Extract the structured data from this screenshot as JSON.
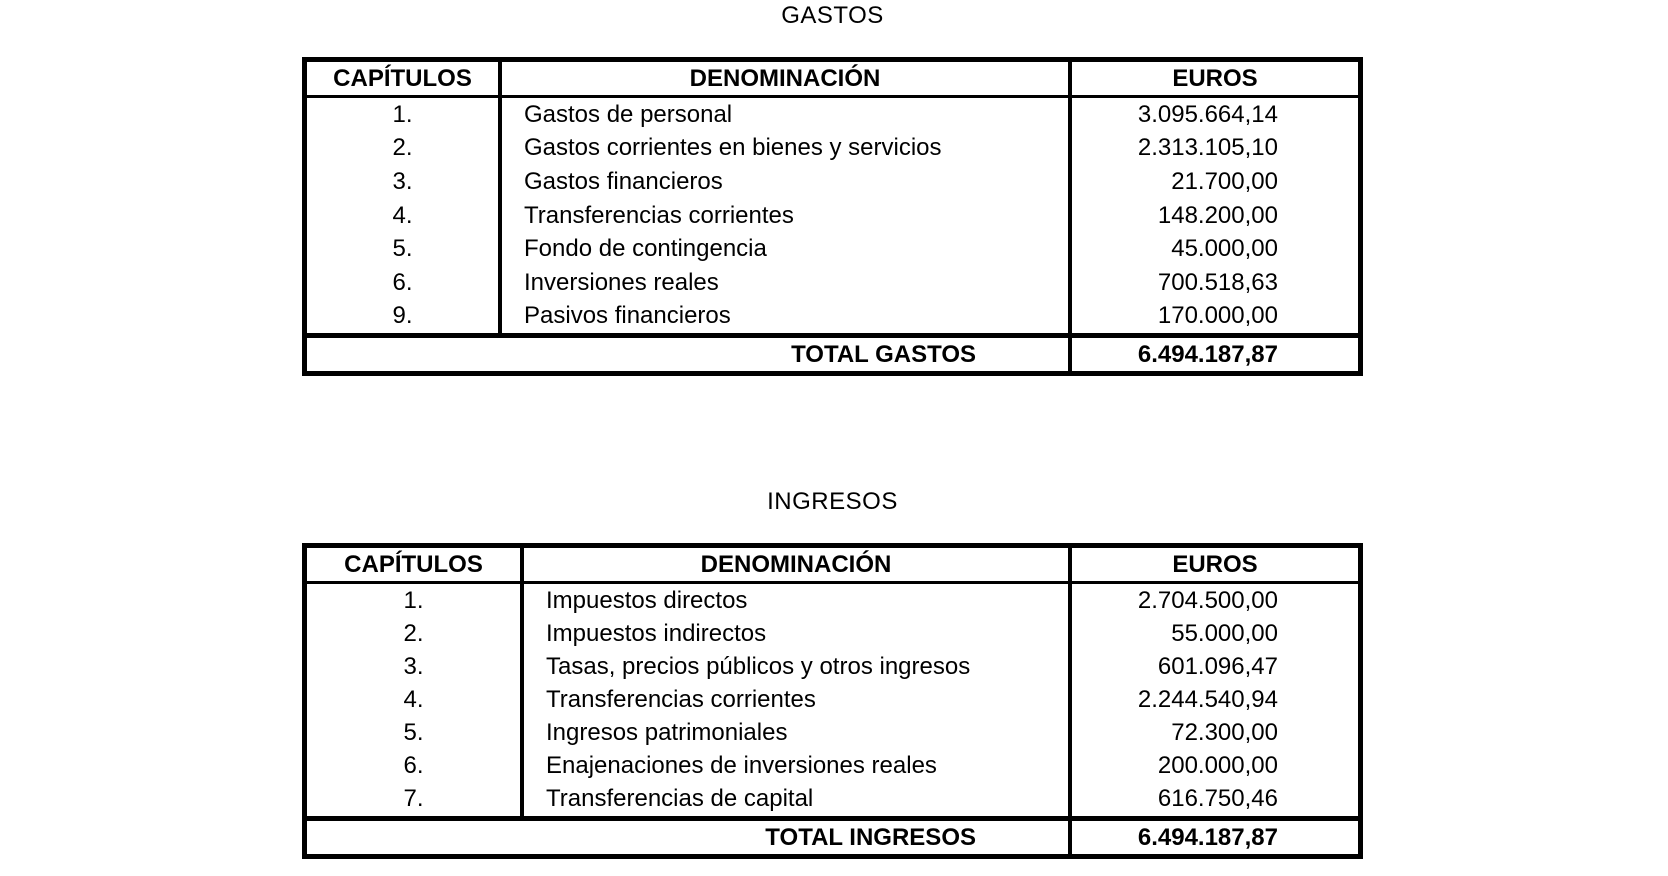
{
  "document": {
    "colors": {
      "background": "#ffffff",
      "text": "#000000",
      "border": "#000000"
    },
    "sections": [
      {
        "title": "GASTOS",
        "columns": {
          "capitulos": "CAPÍTULOS",
          "denominacion": "DENOMINACIÓN",
          "euros": "EUROS"
        },
        "rows": [
          {
            "capitulo": "1.",
            "denominacion": "Gastos de personal",
            "euros": "3.095.664,14"
          },
          {
            "capitulo": "2.",
            "denominacion": "Gastos corrientes en bienes y servicios",
            "euros": "2.313.105,10"
          },
          {
            "capitulo": "3.",
            "denominacion": "Gastos financieros",
            "euros": "21.700,00"
          },
          {
            "capitulo": "4.",
            "denominacion": "Transferencias corrientes",
            "euros": "148.200,00"
          },
          {
            "capitulo": "5.",
            "denominacion": "Fondo de contingencia",
            "euros": "45.000,00"
          },
          {
            "capitulo": "6.",
            "denominacion": "Inversiones reales",
            "euros": "700.518,63"
          },
          {
            "capitulo": "9.",
            "denominacion": "Pasivos financieros",
            "euros": "170.000,00"
          }
        ],
        "total_label": "TOTAL GASTOS",
        "total_value": "6.494.187,87"
      },
      {
        "title": "INGRESOS",
        "columns": {
          "capitulos": "CAPÍTULOS",
          "denominacion": "DENOMINACIÓN",
          "euros": "EUROS"
        },
        "rows": [
          {
            "capitulo": "1.",
            "denominacion": "Impuestos directos",
            "euros": "2.704.500,00"
          },
          {
            "capitulo": "2.",
            "denominacion": "Impuestos indirectos",
            "euros": "55.000,00"
          },
          {
            "capitulo": "3.",
            "denominacion": "Tasas, precios públicos y otros ingresos",
            "euros": "601.096,47"
          },
          {
            "capitulo": "4.",
            "denominacion": "Transferencias corrientes",
            "euros": "2.244.540,94"
          },
          {
            "capitulo": "5.",
            "denominacion": "Ingresos patrimoniales",
            "euros": "72.300,00"
          },
          {
            "capitulo": "6.",
            "denominacion": "Enajenaciones de inversiones reales",
            "euros": "200.000,00"
          },
          {
            "capitulo": "7.",
            "denominacion": "Transferencias de capital",
            "euros": "616.750,46"
          }
        ],
        "total_label": "TOTAL INGRESOS",
        "total_value": "6.494.187,87"
      }
    ]
  }
}
